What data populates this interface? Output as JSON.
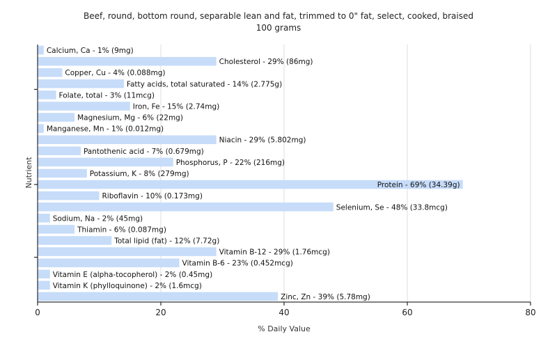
{
  "chart_data": {
    "type": "bar",
    "orientation": "horizontal",
    "title": "Beef, round, bottom round, separable lean and fat, trimmed to 0\" fat, select, cooked, braised",
    "subtitle": "100 grams",
    "xlabel": "% Daily Value",
    "ylabel": "Nutrient",
    "xlim": [
      0,
      80
    ],
    "xticks": [
      0,
      20,
      40,
      60,
      80
    ],
    "grid": true,
    "bar_color": "#c6dcf9",
    "categories": [
      "Calcium, Ca",
      "Cholesterol",
      "Copper, Cu",
      "Fatty acids, total saturated",
      "Folate, total",
      "Iron, Fe",
      "Magnesium, Mg",
      "Manganese, Mn",
      "Niacin",
      "Pantothenic acid",
      "Phosphorus, P",
      "Potassium, K",
      "Protein",
      "Riboflavin",
      "Selenium, Se",
      "Sodium, Na",
      "Thiamin",
      "Total lipid (fat)",
      "Vitamin B-12",
      "Vitamin B-6",
      "Vitamin E (alpha-tocopherol)",
      "Vitamin K (phylloquinone)",
      "Zinc, Zn"
    ],
    "values": [
      1,
      29,
      4,
      14,
      3,
      15,
      6,
      1,
      29,
      7,
      22,
      8,
      69,
      10,
      48,
      2,
      6,
      12,
      29,
      23,
      2,
      2,
      39
    ],
    "labels": [
      "Calcium, Ca - 1% (9mg)",
      "Cholesterol - 29% (86mg)",
      "Copper, Cu - 4% (0.088mg)",
      "Fatty acids, total saturated - 14% (2.775g)",
      "Folate, total - 3% (11mcg)",
      "Iron, Fe - 15% (2.74mg)",
      "Magnesium, Mg - 6% (22mg)",
      "Manganese, Mn - 1% (0.012mg)",
      "Niacin - 29% (5.802mg)",
      "Pantothenic acid - 7% (0.679mg)",
      "Phosphorus, P - 22% (216mg)",
      "Potassium, K - 8% (279mg)",
      "Protein - 69% (34.39g)",
      "Riboflavin - 10% (0.173mg)",
      "Selenium, Se - 48% (33.8mcg)",
      "Sodium, Na - 2% (45mg)",
      "Thiamin - 6% (0.087mg)",
      "Total lipid (fat) - 12% (7.72g)",
      "Vitamin B-12 - 29% (1.76mcg)",
      "Vitamin B-6 - 23% (0.452mcg)",
      "Vitamin E (alpha-tocopherol) - 2% (0.45mg)",
      "Vitamin K (phylloquinone) - 2% (1.6mcg)",
      "Zinc, Zn - 39% (5.78mg)"
    ]
  }
}
